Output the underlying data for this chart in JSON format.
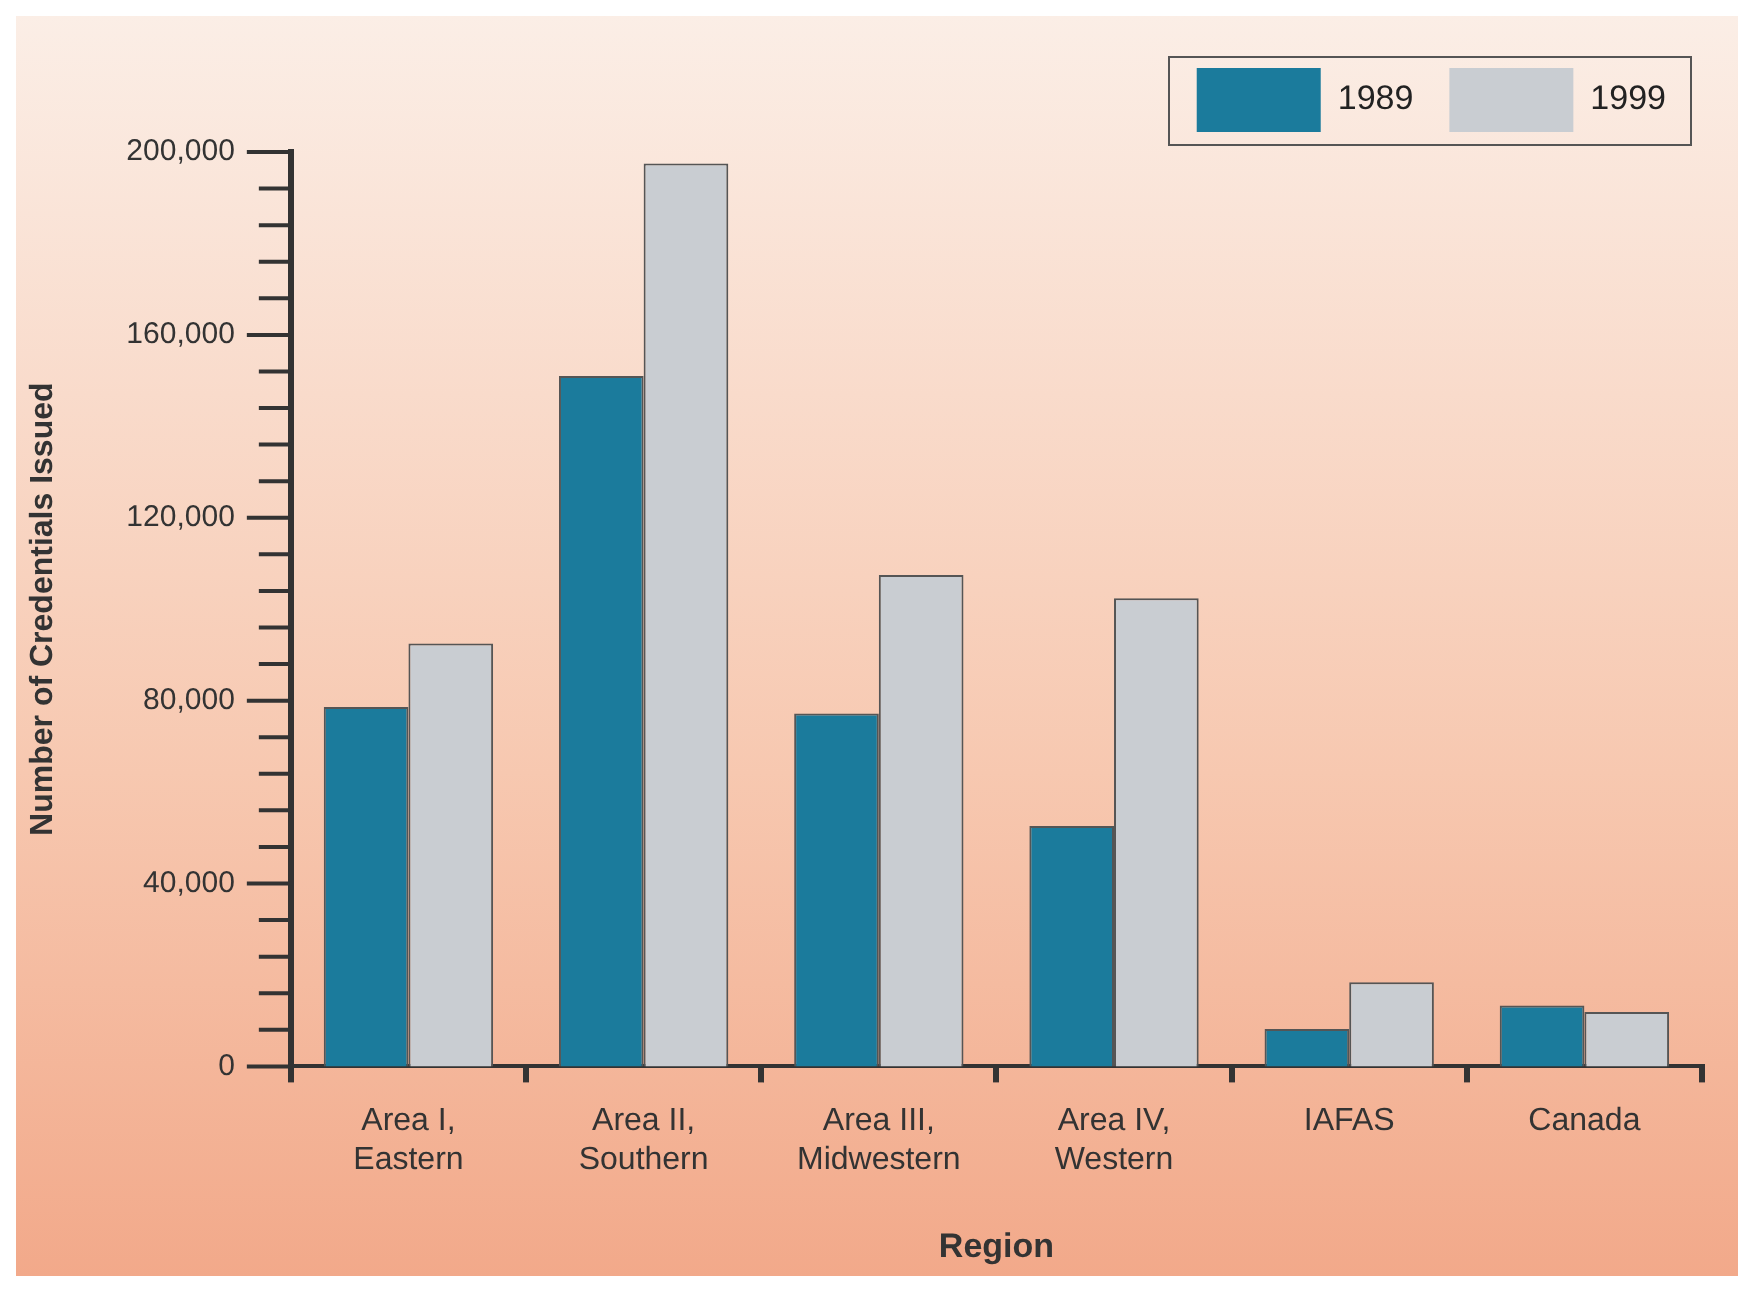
{
  "chart_data": {
    "type": "bar",
    "xlabel": "Region",
    "ylabel": "Number of Credentials Issued",
    "categories": [
      "Area I, Eastern",
      "Area II, Southern",
      "Area III, Midwestern",
      "Area IV, Western",
      "IAFAS",
      "Canada"
    ],
    "series": [
      {
        "name": "1989",
        "color": "#1b7b9c",
        "values": [
          78600,
          151000,
          77200,
          52600,
          8200,
          13300
        ]
      },
      {
        "name": "1999",
        "color": "#c9cdd2",
        "values": [
          92500,
          197500,
          107500,
          102400,
          18400,
          11900
        ]
      }
    ],
    "ylim": [
      0,
      200000
    ],
    "yticks": [
      0,
      {
        "value": 8000,
        "label": null
      },
      {
        "value": 16000,
        "label": null
      },
      {
        "value": 24000,
        "label": null
      },
      {
        "value": 32000,
        "label": null
      },
      {
        "value": 40000,
        "label": "40,000"
      },
      {
        "value": 48000,
        "label": null
      },
      {
        "value": 56000,
        "label": null
      },
      {
        "value": 64000,
        "label": null
      },
      {
        "value": 72000,
        "label": null
      },
      {
        "value": 80000,
        "label": "80,000"
      },
      {
        "value": 88000,
        "label": null
      },
      {
        "value": 96000,
        "label": null
      },
      {
        "value": 104000,
        "label": null
      },
      {
        "value": 112000,
        "label": null
      },
      {
        "value": 120000,
        "label": "120,000"
      },
      {
        "value": 128000,
        "label": null
      },
      {
        "value": 136000,
        "label": null
      },
      {
        "value": 144000,
        "label": null
      },
      {
        "value": 152000,
        "label": null
      },
      {
        "value": 160000,
        "label": "160,000"
      },
      {
        "value": 168000,
        "label": null
      },
      {
        "value": 176000,
        "label": null
      },
      {
        "value": 184000,
        "label": null
      },
      {
        "value": 192000,
        "label": null
      },
      {
        "value": 200000,
        "label": "200,000"
      }
    ],
    "grid": false,
    "legend": "top right"
  }
}
